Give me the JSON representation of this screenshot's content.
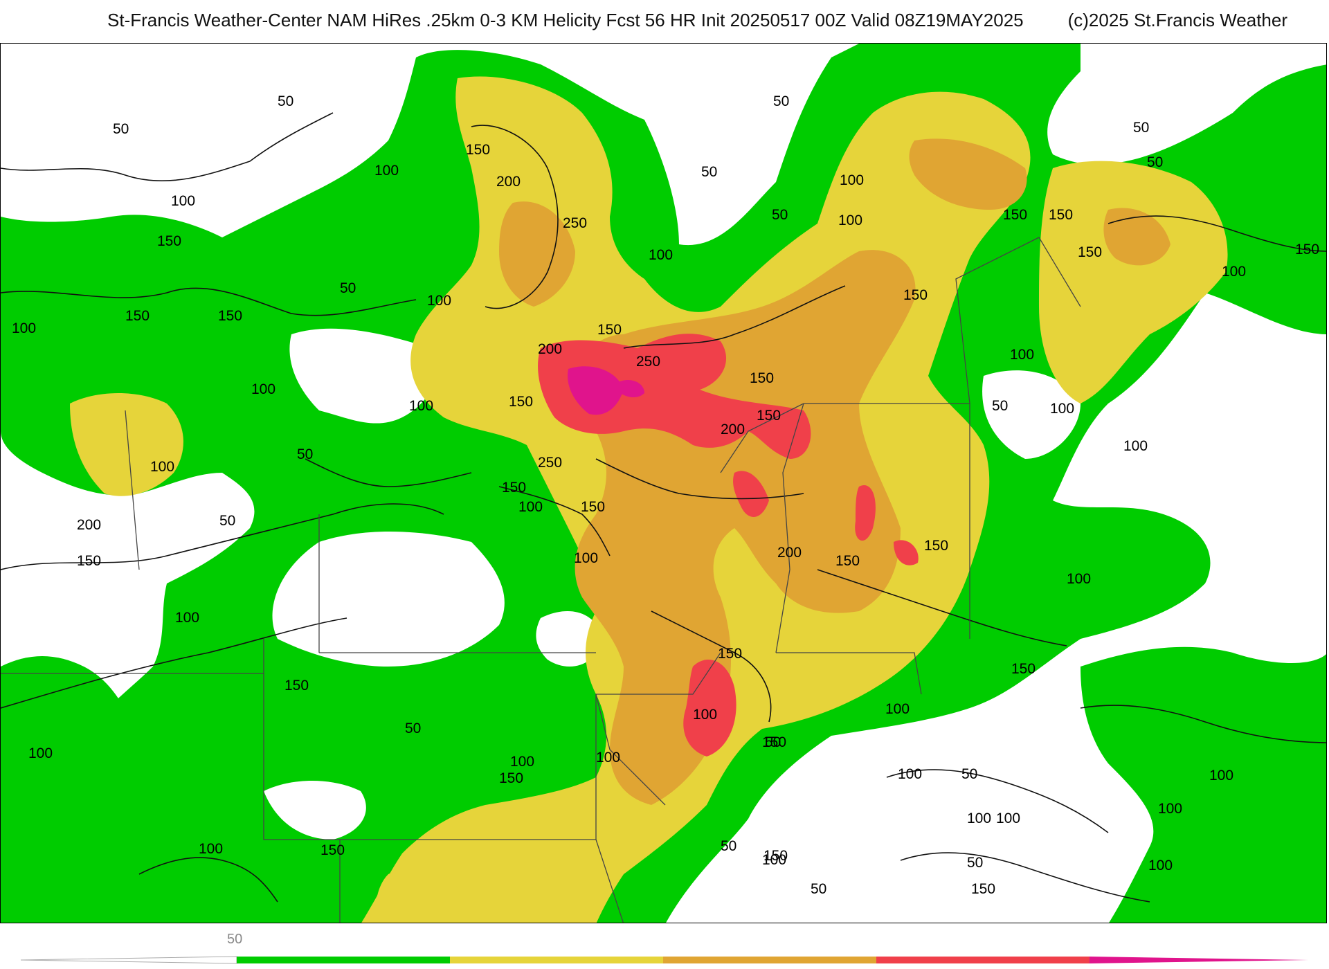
{
  "title": "St-Francis Weather-Center NAM HiRes .25km 0-3 KM Helicity Fcst 56 HR Init 20250517 00Z  Valid 08Z19MAY2025",
  "copyright": "(c)2025 St.Francis Weather",
  "colors": {
    "band_50_100": "#00cc00",
    "band_100_150": "#e6d43a",
    "band_150_200": "#e0a533",
    "band_200_250": "#f0404a",
    "band_250_plus": "#e0148c",
    "contour": "#111111",
    "boundary": "#444444"
  },
  "legend": {
    "label": "50",
    "bands": [
      "#00cc00",
      "#e6d43a",
      "#e0a533",
      "#f0404a",
      "#e0148c"
    ]
  },
  "contour_labels": [
    {
      "id": "l1",
      "text": "50"
    },
    {
      "id": "l2",
      "text": "50"
    },
    {
      "id": "l3",
      "text": "150"
    },
    {
      "id": "l4",
      "text": "100"
    },
    {
      "id": "l5",
      "text": "100"
    },
    {
      "id": "l6",
      "text": "200"
    },
    {
      "id": "l7",
      "text": "250"
    },
    {
      "id": "l8",
      "text": "150"
    },
    {
      "id": "l9",
      "text": "50"
    },
    {
      "id": "l10",
      "text": "100"
    },
    {
      "id": "l11",
      "text": "150"
    },
    {
      "id": "l12",
      "text": "150"
    },
    {
      "id": "l13",
      "text": "100"
    },
    {
      "id": "l14",
      "text": "100"
    },
    {
      "id": "l15",
      "text": "100"
    },
    {
      "id": "l16",
      "text": "200"
    },
    {
      "id": "l17",
      "text": "150"
    },
    {
      "id": "l18",
      "text": "250"
    },
    {
      "id": "l19",
      "text": "150"
    },
    {
      "id": "l20",
      "text": "100"
    },
    {
      "id": "l21",
      "text": "50"
    },
    {
      "id": "l22",
      "text": "100"
    },
    {
      "id": "l23",
      "text": "250"
    },
    {
      "id": "l24",
      "text": "150"
    },
    {
      "id": "l25",
      "text": "100"
    },
    {
      "id": "l26",
      "text": "50"
    },
    {
      "id": "l27",
      "text": "200"
    },
    {
      "id": "l28",
      "text": "150"
    },
    {
      "id": "l29",
      "text": "100"
    },
    {
      "id": "l30",
      "text": "50"
    },
    {
      "id": "l31",
      "text": "50"
    },
    {
      "id": "l32",
      "text": "150"
    },
    {
      "id": "l33",
      "text": "100"
    },
    {
      "id": "l34",
      "text": "150"
    },
    {
      "id": "l35",
      "text": "100"
    },
    {
      "id": "l36",
      "text": "100"
    },
    {
      "id": "l37",
      "text": "150"
    },
    {
      "id": "l38",
      "text": "50"
    },
    {
      "id": "l39",
      "text": "150"
    },
    {
      "id": "l40",
      "text": "200"
    },
    {
      "id": "l41",
      "text": "150"
    },
    {
      "id": "l42",
      "text": "150"
    },
    {
      "id": "l43",
      "text": "50"
    },
    {
      "id": "l44",
      "text": "50"
    },
    {
      "id": "l45",
      "text": "150"
    },
    {
      "id": "l46",
      "text": "200"
    },
    {
      "id": "l47",
      "text": "150"
    },
    {
      "id": "l48",
      "text": "100"
    },
    {
      "id": "l49",
      "text": "100"
    },
    {
      "id": "l50",
      "text": "150"
    },
    {
      "id": "l51",
      "text": "150"
    },
    {
      "id": "l52",
      "text": "100"
    },
    {
      "id": "l53",
      "text": "50"
    },
    {
      "id": "l54",
      "text": "100"
    },
    {
      "id": "l55",
      "text": "50"
    },
    {
      "id": "l56",
      "text": "100"
    },
    {
      "id": "l57",
      "text": "150"
    },
    {
      "id": "l58",
      "text": "100"
    },
    {
      "id": "l59",
      "text": "150"
    },
    {
      "id": "l60",
      "text": "100"
    },
    {
      "id": "l61",
      "text": "100"
    },
    {
      "id": "l62",
      "text": "100"
    },
    {
      "id": "l63",
      "text": "150"
    },
    {
      "id": "l64",
      "text": "100"
    },
    {
      "id": "l65",
      "text": "50"
    },
    {
      "id": "l66",
      "text": "150"
    },
    {
      "id": "l67",
      "text": "100"
    },
    {
      "id": "l68",
      "text": "150"
    },
    {
      "id": "l69",
      "text": "50"
    },
    {
      "id": "l70",
      "text": "100"
    },
    {
      "id": "l71",
      "text": "100"
    },
    {
      "id": "l72",
      "text": "150"
    },
    {
      "id": "l73",
      "text": "100"
    },
    {
      "id": "l74",
      "text": "50"
    },
    {
      "id": "l75",
      "text": "150"
    },
    {
      "id": "l76",
      "text": "100"
    },
    {
      "id": "l77",
      "text": "100"
    },
    {
      "id": "l78",
      "text": "100"
    },
    {
      "id": "l79",
      "text": "150"
    },
    {
      "id": "l80",
      "text": "100"
    },
    {
      "id": "l81",
      "text": "50"
    },
    {
      "id": "l82",
      "text": "50"
    }
  ]
}
